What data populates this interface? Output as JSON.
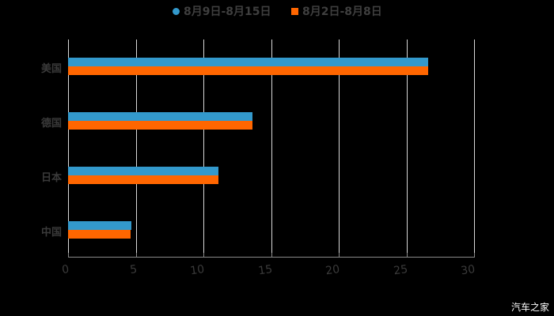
{
  "chart_data": {
    "type": "bar",
    "orientation": "horizontal",
    "title": "",
    "categories": [
      "美国",
      "德国",
      "日本",
      "中国"
    ],
    "series": [
      {
        "name": "8月9日-8月15日",
        "color": "#3399cc",
        "marker": "circle",
        "values": [
          26.6,
          13.6,
          11.1,
          4.7
        ]
      },
      {
        "name": "8月2日-8月8日",
        "color": "#ff6600",
        "marker": "square",
        "values": [
          26.6,
          13.6,
          11.1,
          4.6
        ]
      }
    ],
    "xlabel": "",
    "ylabel": "",
    "xlim": [
      0,
      30
    ],
    "xticks": [
      "0",
      "5",
      "10",
      "15",
      "20",
      "25",
      "30"
    ],
    "grid": true,
    "legend_position": "top"
  },
  "legend": {
    "series1": "8月9日-8月15日",
    "series2": "8月2日-8月8日"
  },
  "watermark": "汽车之家"
}
